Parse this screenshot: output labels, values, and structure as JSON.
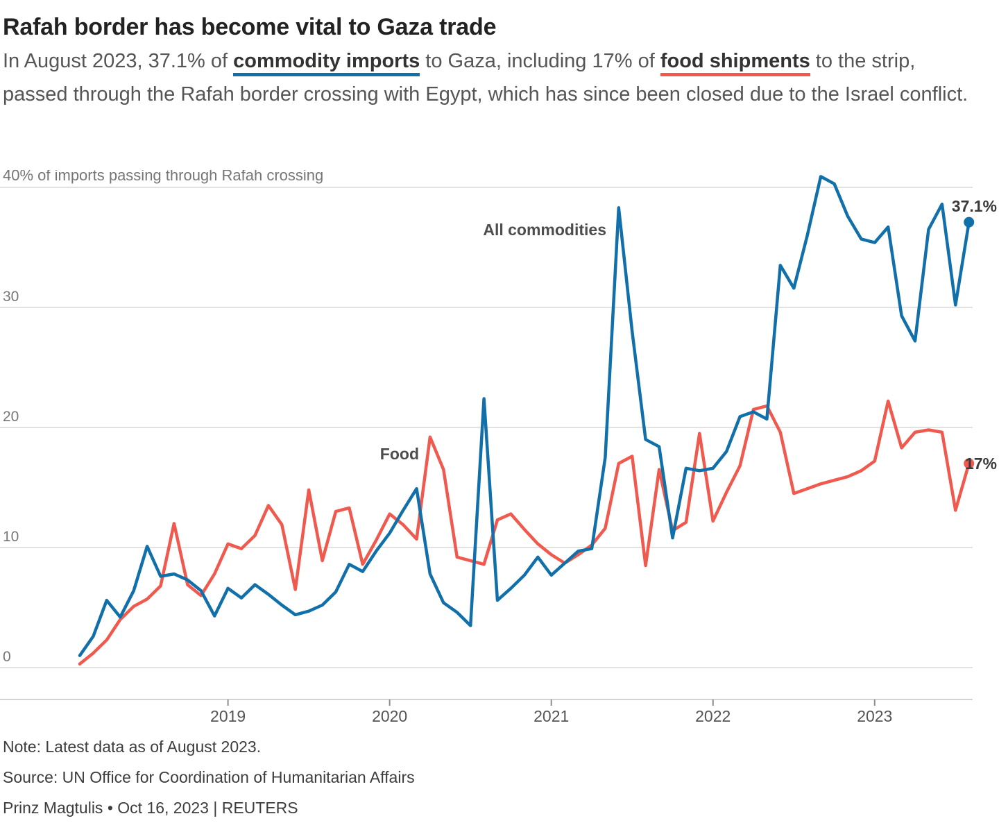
{
  "title": "Rafah border has become vital to Gaza trade",
  "subtitle": {
    "part1": "In August 2023, 37.1% of ",
    "highlight1": "commodity imports",
    "part2": " to Gaza, including 17% of ",
    "highlight2": "food shipments",
    "part3": " to the strip, passed through the Rafah border crossing with Egypt, which has since been closed due to the Israel conflict."
  },
  "colors": {
    "all_commodities": "#1170aa",
    "food": "#f0594e",
    "grid": "#d9d9d9",
    "axis": "#c4c4c4",
    "tick": "#8c8c8c",
    "label_gray": "#767676",
    "x_label_gray": "#555555",
    "series_label": "#4d4d4d",
    "end_label": "#3a3a3a"
  },
  "chart_data": {
    "type": "line",
    "y_axis_top_label": "40% of imports passing through Rafah crossing",
    "ylabel": "% of imports passing through Rafah crossing",
    "ylim": [
      0,
      40
    ],
    "yticks": [
      0,
      10,
      20,
      30,
      40
    ],
    "xticks": [
      "2019",
      "2020",
      "2021",
      "2022",
      "2023"
    ],
    "grid": "horizontal",
    "legend_position": "inline-labels",
    "months": [
      "2018-02",
      "2018-03",
      "2018-04",
      "2018-05",
      "2018-06",
      "2018-07",
      "2018-08",
      "2018-09",
      "2018-10",
      "2018-11",
      "2018-12",
      "2019-01",
      "2019-02",
      "2019-03",
      "2019-04",
      "2019-05",
      "2019-06",
      "2019-07",
      "2019-08",
      "2019-09",
      "2019-10",
      "2019-11",
      "2019-12",
      "2020-01",
      "2020-02",
      "2020-03",
      "2020-04",
      "2020-05",
      "2020-06",
      "2020-07",
      "2020-08",
      "2020-09",
      "2020-10",
      "2020-11",
      "2020-12",
      "2021-01",
      "2021-02",
      "2021-03",
      "2021-04",
      "2021-05",
      "2021-06",
      "2021-07",
      "2021-08",
      "2021-09",
      "2021-10",
      "2021-11",
      "2021-12",
      "2022-01",
      "2022-02",
      "2022-03",
      "2022-04",
      "2022-05",
      "2022-06",
      "2022-07",
      "2022-08",
      "2022-09",
      "2022-10",
      "2022-11",
      "2022-12",
      "2023-01",
      "2023-02",
      "2023-03",
      "2023-04",
      "2023-05",
      "2023-06",
      "2023-07",
      "2023-08"
    ],
    "series": [
      {
        "name": "All commodities",
        "color": "#1170aa",
        "end_label": "37.1%",
        "latest_value": 37.1,
        "values": [
          1.0,
          2.6,
          5.6,
          4.2,
          6.4,
          10.1,
          7.6,
          7.8,
          7.3,
          6.4,
          4.3,
          6.6,
          5.8,
          6.9,
          6.1,
          5.2,
          4.4,
          4.7,
          5.2,
          6.3,
          8.6,
          8.0,
          9.7,
          11.2,
          13.1,
          14.9,
          7.8,
          5.4,
          4.6,
          3.5,
          22.4,
          5.6,
          6.6,
          7.7,
          9.2,
          7.7,
          8.7,
          9.7,
          9.9,
          17.5,
          38.3,
          28.0,
          19.0,
          18.4,
          10.8,
          16.6,
          16.4,
          16.6,
          18.0,
          20.9,
          21.3,
          20.7,
          33.5,
          31.6,
          36.0,
          40.9,
          40.3,
          37.6,
          35.7,
          35.4,
          36.7,
          29.3,
          27.2,
          36.5,
          38.6,
          30.2,
          37.1
        ]
      },
      {
        "name": "Food",
        "color": "#f0594e",
        "end_label": "17%",
        "latest_value": 17.0,
        "values": [
          0.3,
          1.2,
          2.3,
          4.0,
          5.1,
          5.7,
          6.8,
          12.0,
          6.9,
          6.0,
          7.8,
          10.3,
          9.9,
          11.0,
          13.5,
          11.9,
          6.5,
          14.8,
          8.9,
          13.0,
          13.3,
          8.6,
          10.6,
          12.8,
          11.9,
          10.7,
          19.2,
          16.5,
          9.2,
          8.9,
          8.6,
          12.3,
          12.8,
          11.5,
          10.3,
          9.4,
          8.7,
          9.4,
          10.2,
          11.6,
          17.0,
          17.6,
          8.5,
          16.5,
          11.4,
          12.1,
          19.5,
          12.2,
          14.6,
          16.8,
          21.5,
          21.8,
          19.6,
          14.5,
          14.9,
          15.3,
          15.6,
          15.9,
          16.4,
          17.2,
          22.2,
          18.3,
          19.6,
          19.8,
          19.6,
          13.1,
          17.0
        ]
      }
    ]
  },
  "footer": {
    "note": "Note: Latest data as of August 2023.",
    "source": "Source: UN Office for Coordination of Humanitarian Affairs",
    "byline": "Prinz Magtulis • Oct 16, 2023 | REUTERS"
  }
}
